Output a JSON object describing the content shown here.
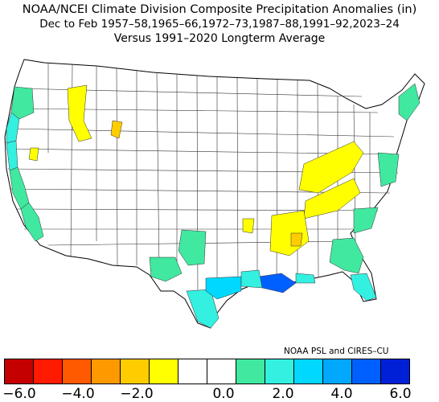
{
  "title": {
    "line1": "NOAA/NCEI Climate Division Composite Precipitation Anomalies (in)",
    "line2": "Dec to Feb  1957–58,1965–66,1972–73,1987–88,1991–92,2023–24",
    "line3": "Versus 1991–2020 Longterm Average"
  },
  "credit": "NOAA PSL and CIRES–CU",
  "colorbar": {
    "colors": [
      "#c40000",
      "#ff1a00",
      "#ff5a00",
      "#ff9900",
      "#ffcc00",
      "#ffff00",
      "#ffffff",
      "#ffffff",
      "#40e8a0",
      "#33f0e0",
      "#00d8ff",
      "#00a8ff",
      "#0060ff",
      "#0020d8"
    ],
    "ticks": [
      "−6.0",
      "−4.0",
      "−2.0",
      "0.0",
      "2.0",
      "4.0",
      "6.0"
    ]
  },
  "map": {
    "regions": [
      {
        "name": "wa-coast",
        "color": "#40e8a0"
      },
      {
        "name": "or-coast",
        "color": "#33f0e0"
      },
      {
        "name": "n-california-coast",
        "color": "#33f0e0"
      },
      {
        "name": "central-california",
        "color": "#40e8a0"
      },
      {
        "name": "s-california-coast",
        "color": "#40e8a0"
      },
      {
        "name": "idaho-montana-west",
        "color": "#ffff00"
      },
      {
        "name": "wyoming-west",
        "color": "#ffcc00"
      },
      {
        "name": "nevada-west",
        "color": "#ffff00"
      },
      {
        "name": "new-mexico",
        "color": "#40e8a0"
      },
      {
        "name": "west-texas",
        "color": "#40e8a0"
      },
      {
        "name": "south-texas",
        "color": "#33f0e0"
      },
      {
        "name": "texas-gulf-coast",
        "color": "#00d8ff"
      },
      {
        "name": "louisiana",
        "color": "#0060ff"
      },
      {
        "name": "gulf-coast-ms-al",
        "color": "#33f0e0"
      },
      {
        "name": "florida",
        "color": "#40e8a0"
      },
      {
        "name": "south-florida",
        "color": "#33f0e0"
      },
      {
        "name": "georgia-carolinas",
        "color": "#40e8a0"
      },
      {
        "name": "mid-atlantic",
        "color": "#40e8a0"
      },
      {
        "name": "northeast-coast",
        "color": "#40e8a0"
      },
      {
        "name": "ohio-valley",
        "color": "#ffff00"
      },
      {
        "name": "tennessee-valley",
        "color": "#ffff00"
      },
      {
        "name": "lower-mississippi",
        "color": "#ffff00"
      },
      {
        "name": "mississippi-dry-core",
        "color": "#ffcc00"
      },
      {
        "name": "missouri-spot",
        "color": "#ffff00"
      }
    ]
  }
}
